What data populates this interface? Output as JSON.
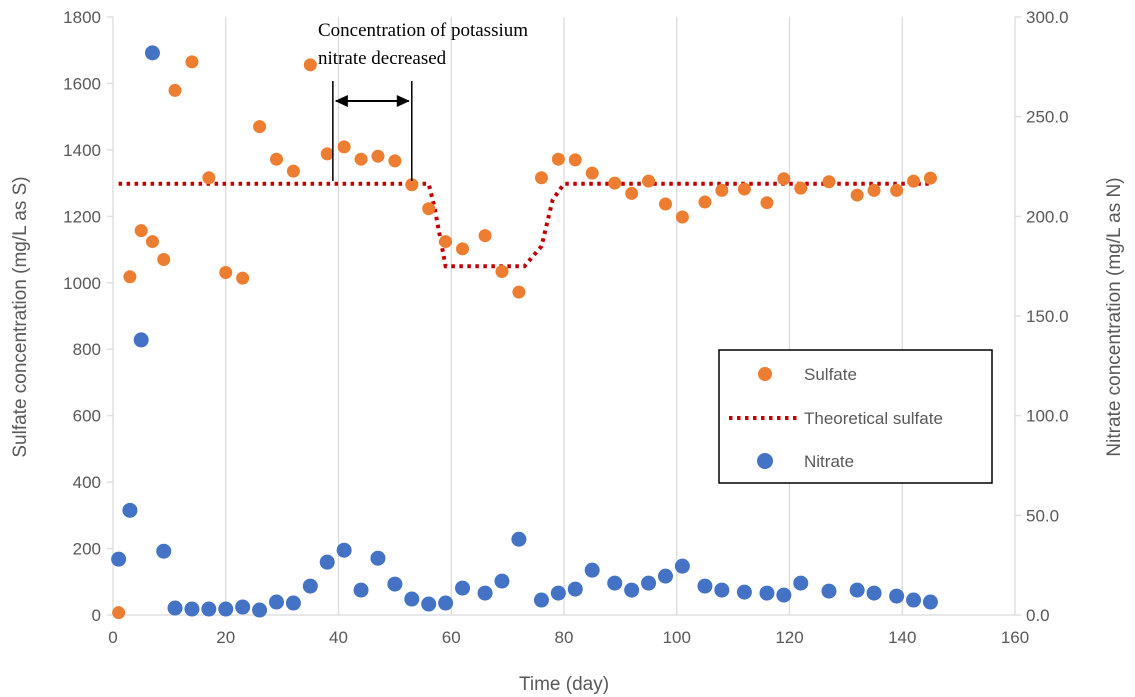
{
  "chart_data": {
    "type": "scatter",
    "xlabel": "Time (day)",
    "ylabel": "Sulfate concentration (mg/L as S)",
    "y2label": "Nitrate concentration (mg/L as N)",
    "xlim": [
      0,
      160
    ],
    "ylim": [
      0,
      1800
    ],
    "y2lim": [
      0,
      300
    ],
    "x_ticks": [
      "0",
      "20",
      "40",
      "60",
      "80",
      "100",
      "120",
      "140",
      "160"
    ],
    "y_ticks": [
      "0",
      "200",
      "400",
      "600",
      "800",
      "1000",
      "1200",
      "1400",
      "1600",
      "1800"
    ],
    "y2_ticks": [
      "0.0",
      "50.0",
      "100.0",
      "150.0",
      "200.0",
      "250.0",
      "300.0"
    ],
    "grid": "vertical",
    "legend_position": "right",
    "annotation": {
      "lines": [
        "Concentration of potassium",
        "nitrate decreased"
      ],
      "x_start": 39,
      "x_end": 53
    },
    "series": [
      {
        "name": "Sulfate",
        "kind": "scatter",
        "axis": "left",
        "color": "#ED7D31",
        "x": [
          1,
          3,
          5,
          7,
          9,
          11,
          14,
          17,
          20,
          23,
          26,
          29,
          32,
          35,
          38,
          41,
          44,
          47,
          50,
          53,
          56,
          59,
          62,
          66,
          69,
          72,
          76,
          79,
          82,
          85,
          89,
          92,
          95,
          98,
          101,
          105,
          108,
          112,
          116,
          119,
          122,
          127,
          132,
          135,
          139,
          142,
          145
        ],
        "y": [
          7,
          1018,
          1157,
          1124,
          1070,
          1579,
          1665,
          1316,
          1031,
          1014,
          1470,
          1372,
          1336,
          1656,
          1388,
          1409,
          1372,
          1381,
          1367,
          1295,
          1223,
          1124,
          1102,
          1142,
          1034,
          972,
          1316,
          1372,
          1370,
          1330,
          1300,
          1269,
          1306,
          1237,
          1198,
          1243,
          1278,
          1282,
          1241,
          1313,
          1285,
          1304,
          1264,
          1278,
          1278,
          1306,
          1315
        ]
      },
      {
        "name": "Theoretical sulfate",
        "kind": "line",
        "axis": "left",
        "color": "#C00000",
        "x": [
          1,
          56,
          57,
          59,
          61,
          73,
          76,
          78,
          80,
          145
        ],
        "y": [
          1298,
          1298,
          1230,
          1050,
          1050,
          1050,
          1110,
          1250,
          1298,
          1298
        ]
      },
      {
        "name": "Nitrate",
        "kind": "scatter",
        "axis": "right",
        "color": "#4472C4",
        "x": [
          1,
          3,
          5,
          7,
          9,
          11,
          14,
          17,
          20,
          23,
          26,
          29,
          32,
          35,
          38,
          41,
          44,
          47,
          50,
          53,
          56,
          59,
          62,
          66,
          69,
          72,
          76,
          79,
          82,
          85,
          89,
          92,
          95,
          98,
          101,
          105,
          108,
          112,
          116,
          119,
          122,
          127,
          132,
          135,
          139,
          142,
          145
        ],
        "y": [
          28,
          52.5,
          138,
          282,
          32,
          3.5,
          3,
          3,
          3,
          4,
          2.5,
          6.5,
          6,
          14.5,
          26.5,
          32.5,
          12.5,
          28.5,
          15.5,
          8,
          5.5,
          6,
          13.5,
          11,
          17,
          38,
          7.5,
          11,
          13,
          22.5,
          16,
          12.5,
          16,
          19.5,
          24.5,
          14.5,
          12.5,
          11.5,
          11,
          10,
          16,
          12,
          12.5,
          11,
          9.5,
          7.5,
          6.5
        ]
      }
    ]
  }
}
